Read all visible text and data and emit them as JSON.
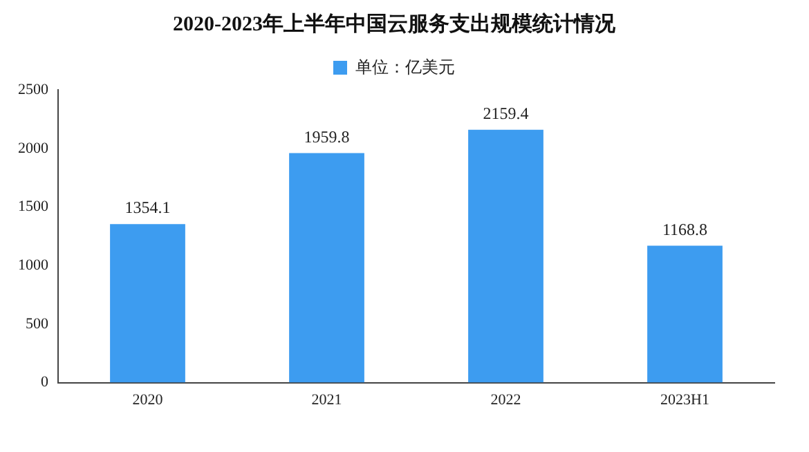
{
  "chart_data": {
    "type": "bar",
    "title": "2020-2023年上半年中国云服务支出规模统计情况",
    "categories": [
      "2020",
      "2021",
      "2022",
      "2023H1"
    ],
    "series": [
      {
        "name": "单位：亿美元",
        "color": "#3d9cf0",
        "values": [
          1354.1,
          1959.8,
          2159.4,
          1168.8
        ]
      }
    ],
    "ylim": [
      0,
      2500
    ],
    "yticks": [
      0,
      500,
      1000,
      1500,
      2000,
      2500
    ],
    "grid": false,
    "legend": "top",
    "data_labels": true
  }
}
